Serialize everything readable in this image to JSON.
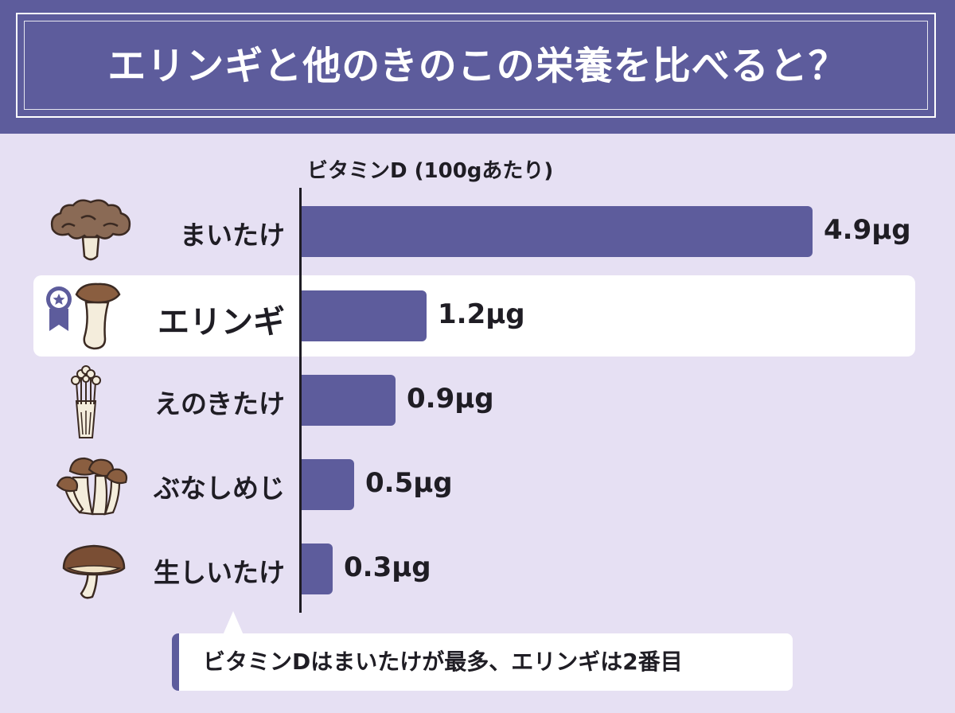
{
  "header": {
    "title": "エリンギと他のきのこの栄養を比べると？"
  },
  "chart_data": {
    "type": "bar",
    "orientation": "horizontal",
    "title": "ビタミンD (100gあたり)",
    "categories": [
      "まいたけ",
      "エリンギ",
      "えのきたけ",
      "ぶなしめじ",
      "生しいたけ"
    ],
    "values": [
      4.9,
      1.2,
      0.9,
      0.5,
      0.3
    ],
    "value_labels": [
      "4.9μg",
      "1.2μg",
      "0.9μg",
      "0.5μg",
      "0.3μg"
    ],
    "unit": "μg",
    "highlighted_category": "エリンギ",
    "grid": false
  },
  "icons": [
    "maitake-mushroom-icon",
    "eringi-mushroom-icon",
    "enoki-mushroom-icon",
    "shimeji-mushroom-icon",
    "shiitake-mushroom-icon",
    "award-ribbon-icon"
  ],
  "callout": {
    "text": "ビタミンDはまいたけが最多、エリンギは2番目"
  },
  "colors": {
    "header_bg": "#5d5c9c",
    "bar": "#5d5c9c",
    "background": "#e6e0f3",
    "highlight_row": "#ffffff"
  }
}
